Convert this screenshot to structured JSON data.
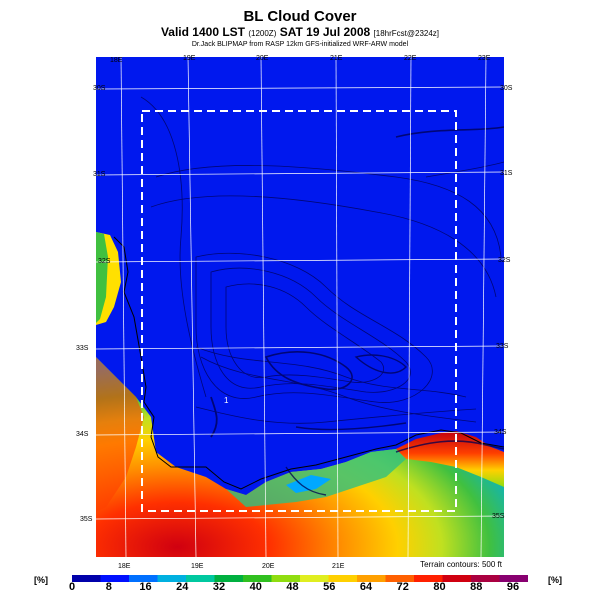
{
  "title": "BL Cloud Cover",
  "subtitle_main": "Valid 1400 LST",
  "subtitle_z": "(1200Z)",
  "subtitle_date": "SAT 19 Jul 2008",
  "subtitle_fcst": "[18hrFcst@2324z]",
  "credit": "Dr.Jack BLIPMAP from RASP 12km GFS-initialized WRF-ARW model",
  "top_lon_labels": [
    "18E",
    "19E",
    "20E",
    "21E",
    "22E",
    "23E"
  ],
  "bottom_lon_labels": [
    "18E",
    "19E",
    "20E",
    "21E"
  ],
  "left_lat_labels": [
    "30S",
    "31S",
    "32S",
    "33S",
    "34S",
    "35S"
  ],
  "right_lat_labels": [
    "30S",
    "31S",
    "32S",
    "33S",
    "34S",
    "35S"
  ],
  "terrain_note": "Terrain contours: 500 ft",
  "unit_left": "[%]",
  "unit_right": "[%]",
  "colorbar_labels": [
    "0",
    "8",
    "16",
    "24",
    "32",
    "40",
    "48",
    "56",
    "64",
    "72",
    "80",
    "88",
    "96"
  ],
  "colorbar_colors": [
    "#0000aa",
    "#0010ff",
    "#0070ff",
    "#00b0e0",
    "#00c8a0",
    "#00b040",
    "#30c020",
    "#90dd10",
    "#e0ee20",
    "#ffd000",
    "#ffa000",
    "#ff6000",
    "#ff2000",
    "#d00010",
    "#aa0040",
    "#880070"
  ]
}
